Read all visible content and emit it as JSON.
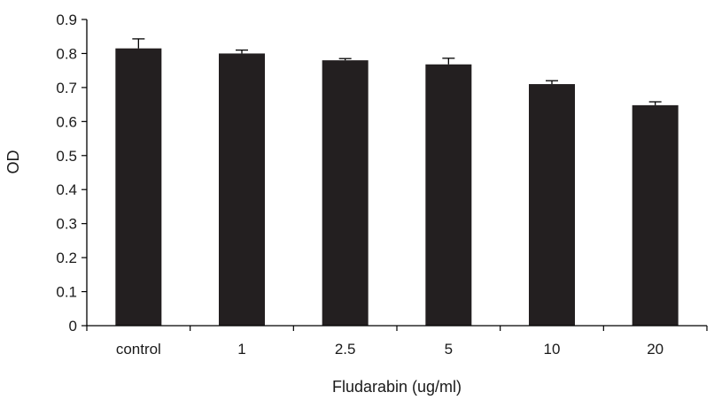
{
  "chart_data": {
    "type": "bar",
    "title": "",
    "xlabel": "Fludarabin (ug/ml)",
    "ylabel": "OD",
    "ylim": [
      0,
      0.9
    ],
    "yticks": [
      "0",
      "0.1",
      "0.2",
      "0.3",
      "0.4",
      "0.5",
      "0.6",
      "0.7",
      "0.8",
      "0.9"
    ],
    "categories": [
      "control",
      "1",
      "2.5",
      "5",
      "10",
      "20"
    ],
    "values": [
      0.815,
      0.8,
      0.78,
      0.768,
      0.71,
      0.648
    ],
    "error_plus": [
      0.028,
      0.01,
      0.005,
      0.018,
      0.01,
      0.01
    ],
    "bar_color": "#231f20",
    "grid": false,
    "legend": "none"
  }
}
